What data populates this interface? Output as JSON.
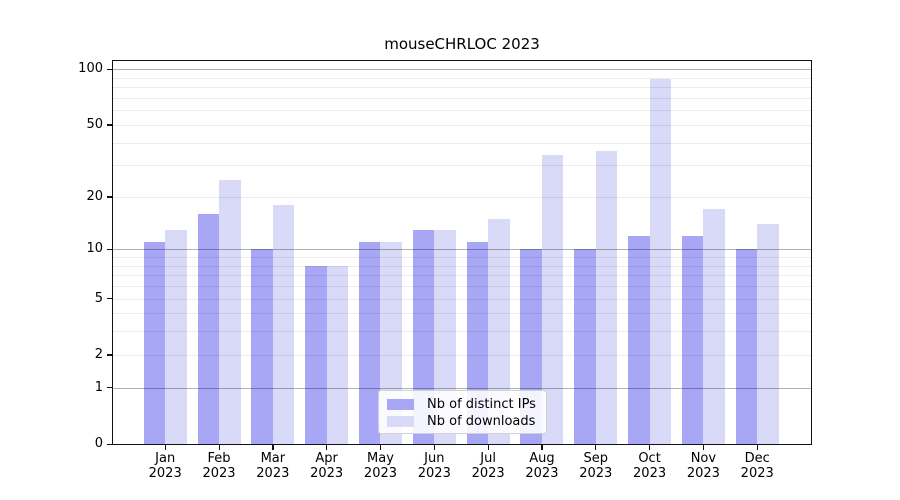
{
  "figure": {
    "title": "mouseCHRLOC 2023"
  },
  "chart_data": {
    "type": "bar",
    "title": "mouseCHRLOC 2023",
    "categories": [
      {
        "month": "Jan",
        "year": "2023"
      },
      {
        "month": "Feb",
        "year": "2023"
      },
      {
        "month": "Mar",
        "year": "2023"
      },
      {
        "month": "Apr",
        "year": "2023"
      },
      {
        "month": "May",
        "year": "2023"
      },
      {
        "month": "Jun",
        "year": "2023"
      },
      {
        "month": "Jul",
        "year": "2023"
      },
      {
        "month": "Aug",
        "year": "2023"
      },
      {
        "month": "Sep",
        "year": "2023"
      },
      {
        "month": "Oct",
        "year": "2023"
      },
      {
        "month": "Nov",
        "year": "2023"
      },
      {
        "month": "Dec",
        "year": "2023"
      }
    ],
    "series": [
      {
        "name": "Nb of distinct IPs",
        "color": "#a7a7f5",
        "values": [
          11,
          16,
          10,
          8,
          11,
          13,
          11,
          10,
          10,
          12,
          12,
          10
        ]
      },
      {
        "name": "Nb of downloads",
        "color": "#d9d9f8",
        "values": [
          13,
          25,
          18,
          8,
          11,
          13,
          15,
          34,
          36,
          89,
          17,
          14
        ]
      }
    ],
    "xlabel": "",
    "ylabel": "",
    "yscale": "log1p",
    "ylim": [
      0,
      111
    ],
    "yticks": [
      0,
      1,
      2,
      5,
      10,
      20,
      50,
      100
    ],
    "grid_major": [
      1,
      10,
      100
    ],
    "grid_minor": [
      2,
      3,
      4,
      5,
      6,
      7,
      8,
      9,
      20,
      30,
      40,
      50,
      60,
      70,
      80,
      90
    ],
    "grid": "horizontal",
    "legend_position": "lower center inside plot"
  }
}
